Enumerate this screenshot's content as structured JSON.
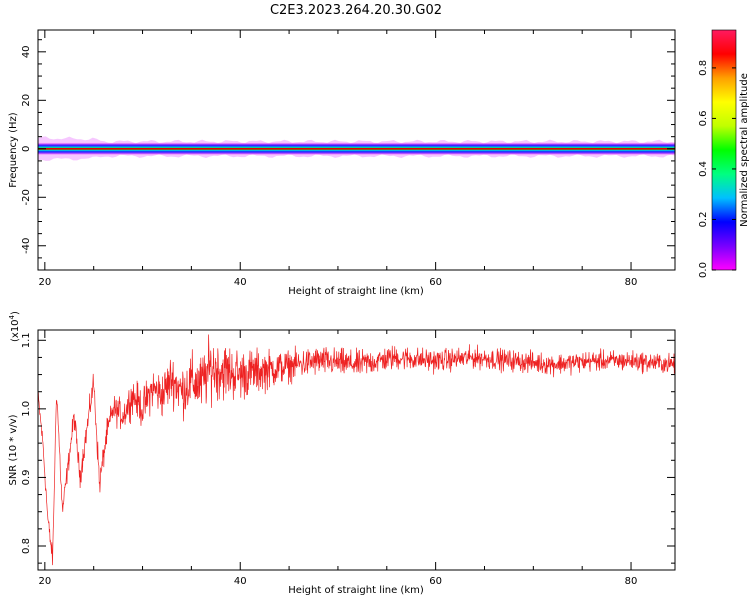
{
  "title": "C2E3.2023.264.20.30.G02",
  "chart_data": [
    {
      "type": "heatmap",
      "xlabel": "Height of straight line (km)",
      "ylabel": "Frequency (Hz)",
      "xlim": [
        19.3,
        84.5
      ],
      "ylim": [
        -50,
        49
      ],
      "xticks": [
        20,
        40,
        60,
        80
      ],
      "yticks": [
        -40,
        -20,
        0,
        20,
        40
      ],
      "band_center_hz": 0,
      "band_halfwidth_hz": [
        {
          "x": 19.3,
          "hw": 4.5
        },
        {
          "x": 25.0,
          "hw": 4.0
        },
        {
          "x": 26.0,
          "hw": 3.0
        },
        {
          "x": 84.5,
          "hw": 3.0
        }
      ],
      "colorbar": {
        "label": "Normalized spectral amplitude",
        "range": [
          0.0,
          0.95
        ],
        "ticks": [
          0.0,
          0.2,
          0.4,
          0.6,
          0.8
        ],
        "colormap": [
          "#ff00ff",
          "#7700ff",
          "#0000ff",
          "#00c0ff",
          "#00ff80",
          "#00ff00",
          "#c0ff00",
          "#ffff00",
          "#ffa000",
          "#ff0000",
          "#ff1a60"
        ]
      }
    },
    {
      "type": "line",
      "xlabel": "Height of straight line (km)",
      "ylabel": "SNR (10 * v/v)",
      "yscale_label": "(x10",
      "yscale_exp": "4",
      "yscale_close": ")",
      "xlim": [
        19.3,
        84.5
      ],
      "ylim": [
        0.765,
        1.115
      ],
      "xticks": [
        20,
        40,
        60,
        80
      ],
      "yticks": [
        0.8,
        0.9,
        1.0,
        1.1
      ],
      "color": "#ee2222",
      "trend_points": [
        {
          "x": 19.3,
          "y": 1.02
        },
        {
          "x": 19.8,
          "y": 0.95
        },
        {
          "x": 20.3,
          "y": 0.84
        },
        {
          "x": 20.8,
          "y": 0.78
        },
        {
          "x": 21.2,
          "y": 1.03
        },
        {
          "x": 21.8,
          "y": 0.85
        },
        {
          "x": 22.4,
          "y": 0.92
        },
        {
          "x": 23.0,
          "y": 0.99
        },
        {
          "x": 23.6,
          "y": 0.9
        },
        {
          "x": 24.3,
          "y": 0.97
        },
        {
          "x": 25.0,
          "y": 1.04
        },
        {
          "x": 25.6,
          "y": 0.89
        },
        {
          "x": 26.3,
          "y": 0.96
        },
        {
          "x": 27.0,
          "y": 1.0
        },
        {
          "x": 28.0,
          "y": 0.99
        },
        {
          "x": 29.0,
          "y": 1.02
        },
        {
          "x": 30.0,
          "y": 1.0
        },
        {
          "x": 31.0,
          "y": 1.03
        },
        {
          "x": 32.0,
          "y": 1.02
        },
        {
          "x": 33.0,
          "y": 1.045
        },
        {
          "x": 34.0,
          "y": 1.025
        },
        {
          "x": 35.0,
          "y": 1.04
        },
        {
          "x": 36.0,
          "y": 1.035
        },
        {
          "x": 37.0,
          "y": 1.06
        },
        {
          "x": 40.0,
          "y": 1.05
        },
        {
          "x": 44.0,
          "y": 1.06
        },
        {
          "x": 48.0,
          "y": 1.07
        },
        {
          "x": 52.0,
          "y": 1.065
        },
        {
          "x": 56.0,
          "y": 1.075
        },
        {
          "x": 60.0,
          "y": 1.07
        },
        {
          "x": 64.0,
          "y": 1.075
        },
        {
          "x": 68.0,
          "y": 1.07
        },
        {
          "x": 72.0,
          "y": 1.065
        },
        {
          "x": 76.0,
          "y": 1.07
        },
        {
          "x": 80.0,
          "y": 1.07
        },
        {
          "x": 84.5,
          "y": 1.065
        }
      ],
      "noise_amplitude": [
        {
          "x": 19.3,
          "a": 0.012
        },
        {
          "x": 27.0,
          "a": 0.02
        },
        {
          "x": 33.0,
          "a": 0.035
        },
        {
          "x": 37.0,
          "a": 0.045
        },
        {
          "x": 45.0,
          "a": 0.022
        },
        {
          "x": 60.0,
          "a": 0.016
        },
        {
          "x": 84.5,
          "a": 0.014
        }
      ]
    }
  ]
}
